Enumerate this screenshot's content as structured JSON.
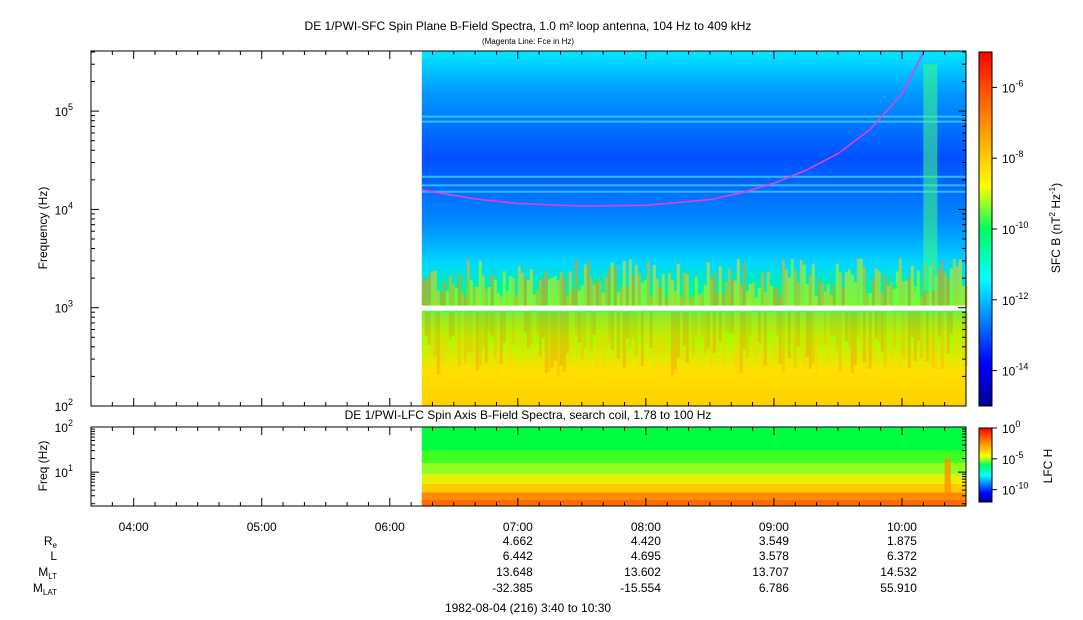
{
  "chart_data": [
    {
      "type": "heatmap",
      "title": "DE 1/PWI-SFC  Spin Plane B-Field Spectra, 1.0 m² loop antenna, 104 Hz to 409 kHz",
      "subtitle": "(Magenta Line: Fce in Hz)",
      "ylabel": "Frequency (Hz)",
      "yscale": "log",
      "ylim": [
        100,
        409000
      ],
      "xlim": [
        "03:40",
        "10:30"
      ],
      "y_ticks": [
        {
          "value": 100,
          "base": "10",
          "exp": "2"
        },
        {
          "value": 1000,
          "base": "10",
          "exp": "3"
        },
        {
          "value": 10000,
          "base": "10",
          "exp": "4"
        },
        {
          "value": 100000,
          "base": "10",
          "exp": "5"
        }
      ],
      "data_start": "06:15",
      "data_end": "10:30",
      "gap_band_hz": [
        930,
        1050
      ],
      "colorbar": {
        "label": "SFC B (nT",
        "label_sup1": "2",
        "label_mid": " Hz",
        "label_sup2": "-1",
        "label_end": ")",
        "scale": "log",
        "range": [
          1e-15,
          1e-05
        ],
        "ticks": [
          {
            "value": 1e-06,
            "base": "10",
            "exp": "-6"
          },
          {
            "value": 1e-08,
            "base": "10",
            "exp": "-8"
          },
          {
            "value": 1e-10,
            "base": "10",
            "exp": "-10"
          },
          {
            "value": 1e-12,
            "base": "10",
            "exp": "-12"
          },
          {
            "value": 1e-14,
            "base": "10",
            "exp": "-14"
          }
        ]
      },
      "line": {
        "name": "Fce",
        "color": "#e040e0",
        "x": [
          "06:15",
          "06:40",
          "07:00",
          "07:30",
          "08:00",
          "08:30",
          "08:45",
          "09:00",
          "09:15",
          "09:30",
          "09:45",
          "10:00",
          "10:10"
        ],
        "y": [
          15800,
          12800,
          11500,
          10800,
          11000,
          12600,
          14800,
          18500,
          25000,
          37000,
          65000,
          150000,
          390000
        ]
      }
    },
    {
      "type": "heatmap",
      "title": "DE 1/PWI-LFC  Spin Axis B-Field Spectra, search coil, 1.78 to 100 Hz",
      "ylabel": "Freq (Hz)",
      "yscale": "log",
      "ylim": [
        1.78,
        100
      ],
      "y_ticks": [
        {
          "value": 10,
          "base": "10",
          "exp": "1"
        },
        {
          "value": 100,
          "base": "10",
          "exp": "2"
        }
      ],
      "data_start": "06:15",
      "data_end": "10:30",
      "colorbar": {
        "label": "LFC H",
        "scale": "log",
        "range": [
          1e-12,
          1
        ],
        "ticks": [
          {
            "value": 1,
            "base": "10",
            "exp": "0"
          },
          {
            "value": 1e-05,
            "base": "10",
            "exp": "-5"
          },
          {
            "value": 1e-10,
            "base": "10",
            "exp": "-10"
          }
        ]
      }
    }
  ],
  "time_axis": {
    "start": "03:40",
    "end": "10:30",
    "ticks": [
      "04:00",
      "05:00",
      "06:00",
      "07:00",
      "08:00",
      "09:00",
      "10:00"
    ]
  },
  "ephemeris": {
    "rows": [
      {
        "label": "R",
        "sub": "e",
        "values": [
          "4.662",
          "4.420",
          "3.549",
          "1.875"
        ]
      },
      {
        "label": "L",
        "sub": "",
        "values": [
          "6.442",
          "4.695",
          "3.578",
          "6.372"
        ]
      },
      {
        "label": "M",
        "sub": "LT",
        "values": [
          "13.648",
          "13.602",
          "13.707",
          "14.532"
        ]
      },
      {
        "label": "M",
        "sub": "LAT",
        "values": [
          "-32.385",
          "-15.554",
          "6.786",
          "55.910"
        ]
      }
    ],
    "columns_at": [
      "07:00",
      "08:00",
      "09:00",
      "10:00"
    ]
  },
  "footer": "1982-08-04 (216) 3:40 to 10:30"
}
